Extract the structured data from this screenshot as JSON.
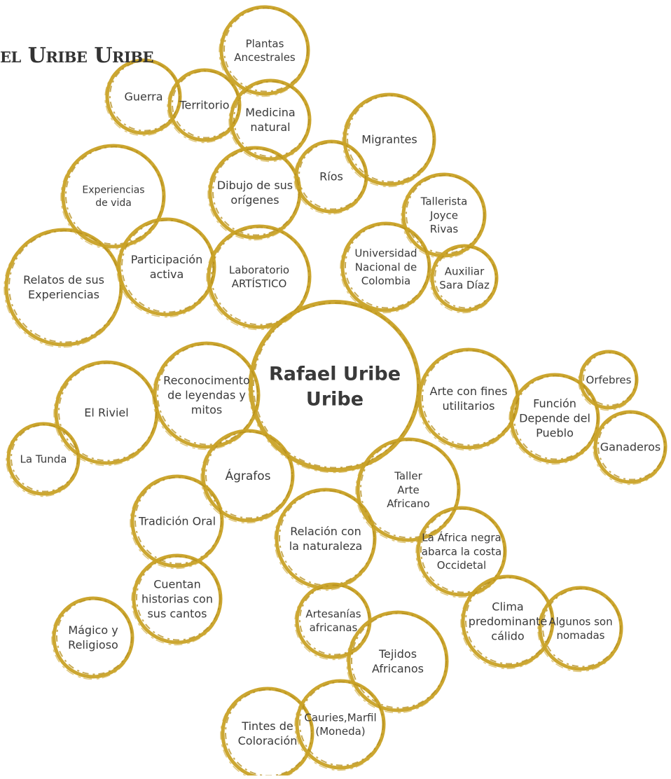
{
  "title": "el Uribe Uribe",
  "colors": {
    "ring": "#c9a227",
    "ring_dark": "#b48e1c",
    "text": "#3a3a3a",
    "strong_text": "#000000"
  },
  "nodes": [
    {
      "id": "center",
      "lines": [
        "Rafael Uribe",
        "Uribe"
      ]
    },
    {
      "id": "plantas",
      "lines": [
        "Plantas",
        "Ancestrales"
      ]
    },
    {
      "id": "guerra",
      "lines": [
        "Guerra"
      ]
    },
    {
      "id": "territorio",
      "lines": [
        "Territorio"
      ]
    },
    {
      "id": "medicina",
      "lines": [
        "Medicina",
        "natural"
      ]
    },
    {
      "id": "migrantes",
      "lines": [
        "Migrantes"
      ]
    },
    {
      "id": "rios",
      "lines": [
        "Ríos"
      ]
    },
    {
      "id": "dibujo",
      "lines": [
        "Dibujo de sus",
        "orígenes"
      ]
    },
    {
      "id": "experiencias",
      "lines": [
        "Experiencias",
        "de vida"
      ]
    },
    {
      "id": "tallerista",
      "lines": [
        "Tallerista",
        "Joyce",
        "Rivas"
      ]
    },
    {
      "id": "universidad",
      "lines": [
        "Universidad",
        "Nacional de",
        "Colombia"
      ]
    },
    {
      "id": "auxiliar",
      "lines": [
        "Auxiliar",
        "Sara Díaz"
      ]
    },
    {
      "id": "relatos",
      "lines": [
        "Relatos de sus",
        "Experiencias"
      ]
    },
    {
      "id": "participacion",
      "lines": [
        "Participación",
        "activa"
      ]
    },
    {
      "id": "laboratorio",
      "lines": [
        "Laboratorio",
        "ARTÍSTICO"
      ]
    },
    {
      "id": "reconocimiento",
      "lines": [
        "Reconocimento",
        "de leyendas y",
        "mitos"
      ]
    },
    {
      "id": "riviel",
      "lines": [
        "El Riviel"
      ]
    },
    {
      "id": "tunda",
      "lines": [
        "La Tunda"
      ]
    },
    {
      "id": "arte_fines",
      "lines": [
        "Arte con fines",
        "utilitarios"
      ]
    },
    {
      "id": "funcion",
      "lines": [
        "Función",
        "Depende del",
        "Pueblo"
      ]
    },
    {
      "id": "orfebres",
      "lines": [
        "Orfebres"
      ]
    },
    {
      "id": "ganaderos",
      "lines": [
        "Ganaderos"
      ]
    },
    {
      "id": "agrafos",
      "lines": [
        "Ágrafos"
      ]
    },
    {
      "id": "taller",
      "lines": [
        "Taller",
        "Arte",
        "Africano"
      ]
    },
    {
      "id": "tradicion",
      "lines": [
        "Tradición Oral"
      ]
    },
    {
      "id": "relacion",
      "lines": [
        "Relación con",
        "la naturaleza"
      ]
    },
    {
      "id": "africa",
      "lines": [
        "La África negra",
        "abarca la costa",
        "Occidetal"
      ]
    },
    {
      "id": "cuentan",
      "lines": [
        "Cuentan",
        "historias con",
        "sus cantos"
      ]
    },
    {
      "id": "clima",
      "lines": [
        "Clima",
        "predominante",
        "cálido"
      ]
    },
    {
      "id": "algunos",
      "lines": [
        "Algunos son",
        "nomadas"
      ]
    },
    {
      "id": "magico",
      "lines": [
        "Mágico y",
        "Religioso"
      ]
    },
    {
      "id": "artesanias",
      "lines": [
        "Artesanías",
        "africanas"
      ]
    },
    {
      "id": "tejidos",
      "lines": [
        "Tejidos",
        "Africanos"
      ]
    },
    {
      "id": "tintes",
      "lines": [
        "Tintes de",
        "Coloración"
      ]
    },
    {
      "id": "cauries",
      "lines": [
        "Cauries,Marfil",
        "(Moneda)"
      ]
    }
  ]
}
